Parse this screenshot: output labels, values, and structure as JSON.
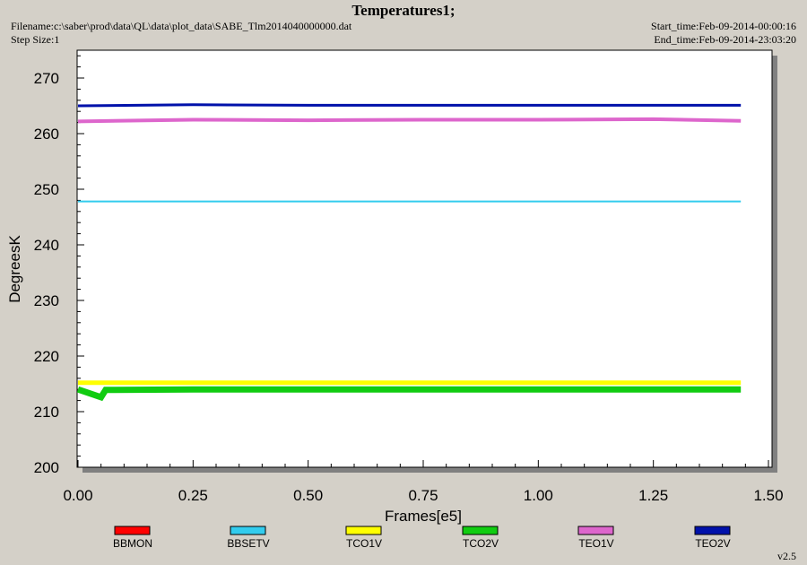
{
  "header": {
    "title": "Temperatures1;",
    "filename": "Filename:c:\\saber\\prod\\data\\QL\\data\\plot_data\\SABE_Tlm2014040000000.dat",
    "step_size": "Step Size:1",
    "start_time": "Start_time:Feb-09-2014-00:00:16",
    "end_time": "End_time:Feb-09-2014-23:03:20"
  },
  "version": "v2.5",
  "chart_data": {
    "type": "line",
    "title": "Temperatures1;",
    "xlabel": "Frames[e5]",
    "ylabel": "DegreesK",
    "xlim": [
      0.0,
      1.5
    ],
    "ylim": [
      200,
      275
    ],
    "x_ticks": [
      "0.00",
      "0.25",
      "0.50",
      "0.75",
      "1.00",
      "1.25",
      "1.50"
    ],
    "y_ticks": [
      "200",
      "210",
      "220",
      "230",
      "240",
      "250",
      "260",
      "270"
    ],
    "grid": false,
    "legend_position": "bottom",
    "series": [
      {
        "name": "BBMON",
        "color": "#ff0000",
        "x": [],
        "y": []
      },
      {
        "name": "BBSETV",
        "color": "#33ccee",
        "x": [
          0.0,
          0.25,
          0.5,
          0.75,
          1.0,
          1.25,
          1.44
        ],
        "y": [
          247.8,
          247.8,
          247.8,
          247.8,
          247.8,
          247.8,
          247.8
        ]
      },
      {
        "name": "TCO1V",
        "color": "#ffff00",
        "x": [
          0.0,
          0.25,
          0.5,
          0.75,
          1.0,
          1.25,
          1.44
        ],
        "y": [
          215.2,
          215.2,
          215.2,
          215.2,
          215.2,
          215.2,
          215.2
        ]
      },
      {
        "name": "TCO2V",
        "color": "#11cc11",
        "x": [
          0.0,
          0.05,
          0.06,
          0.25,
          0.5,
          0.75,
          1.0,
          1.25,
          1.44
        ],
        "y": [
          214.0,
          212.6,
          213.9,
          214.0,
          214.0,
          214.0,
          214.0,
          214.0,
          214.0
        ]
      },
      {
        "name": "TEO1V",
        "color": "#dd66cc",
        "x": [
          0.0,
          0.25,
          0.5,
          0.75,
          1.0,
          1.25,
          1.44
        ],
        "y": [
          262.2,
          262.5,
          262.4,
          262.5,
          262.5,
          262.6,
          262.3
        ]
      },
      {
        "name": "TEO2V",
        "color": "#0011aa",
        "x": [
          0.0,
          0.25,
          0.5,
          0.75,
          1.0,
          1.25,
          1.44
        ],
        "y": [
          265.0,
          265.2,
          265.1,
          265.1,
          265.1,
          265.1,
          265.1
        ]
      }
    ]
  }
}
